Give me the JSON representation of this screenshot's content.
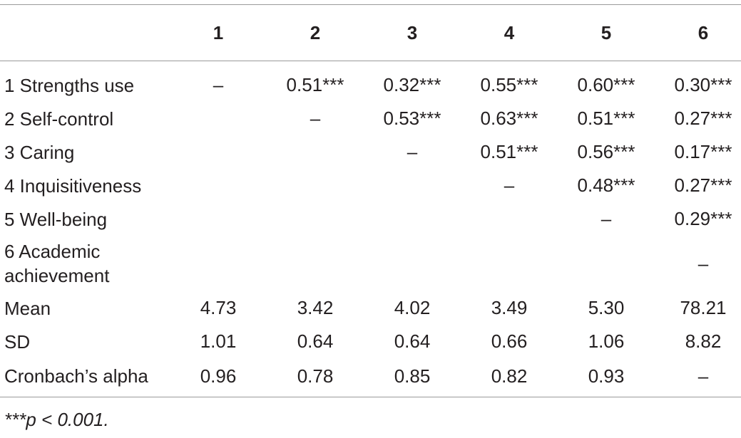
{
  "table": {
    "header": [
      "",
      "1",
      "2",
      "3",
      "4",
      "5",
      "6"
    ],
    "rows": [
      [
        "1 Strengths use",
        "–",
        "0.51***",
        "0.32***",
        "0.55***",
        "0.60***",
        "0.30***"
      ],
      [
        "2 Self-control",
        "",
        "–",
        "0.53***",
        "0.63***",
        "0.51***",
        "0.27***"
      ],
      [
        "3 Caring",
        "",
        "",
        "–",
        "0.51***",
        "0.56***",
        "0.17***"
      ],
      [
        "4 Inquisitiveness",
        "",
        "",
        "",
        "–",
        "0.48***",
        "0.27***"
      ],
      [
        "5 Well-being",
        "",
        "",
        "",
        "",
        "–",
        "0.29***"
      ],
      [
        "6 Academic achievement",
        "",
        "",
        "",
        "",
        "",
        "–"
      ],
      [
        "Mean",
        "4.73",
        "3.42",
        "4.02",
        "3.49",
        "5.30",
        "78.21"
      ],
      [
        "SD",
        "1.01",
        "0.64",
        "0.64",
        "0.66",
        "1.06",
        "8.82"
      ],
      [
        "Cronbach’s alpha",
        "0.96",
        "0.78",
        "0.85",
        "0.82",
        "0.93",
        "–"
      ]
    ]
  },
  "footnote": "***p < 0.001."
}
